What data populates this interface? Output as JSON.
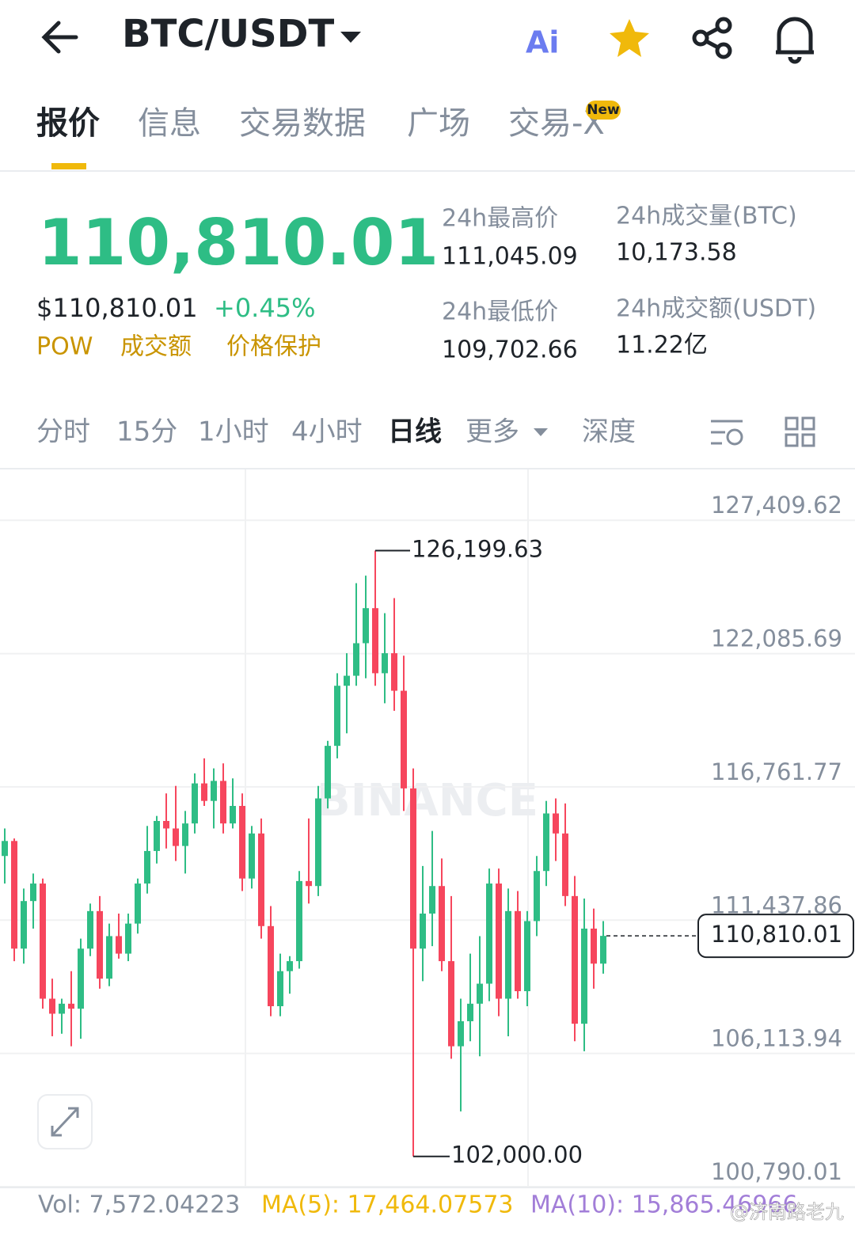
{
  "header": {
    "pair": "BTC/USDT",
    "ai": "Ai"
  },
  "tabs": [
    "报价",
    "信息",
    "交易数据",
    "广场",
    "交易-X"
  ],
  "tab_badge": "New",
  "price": {
    "last": "110,810.01",
    "usd": "$110,810.01",
    "change": "+0.45%",
    "tags": [
      "POW",
      "成交额",
      "价格保护"
    ]
  },
  "stats": [
    {
      "label": "24h最高价",
      "value": "111,045.09"
    },
    {
      "label": "24h成交量(BTC)",
      "value": "10,173.58"
    },
    {
      "label": "24h最低价",
      "value": "109,702.66"
    },
    {
      "label": "24h成交额(USDT)",
      "value": "11.22亿"
    }
  ],
  "intervals": [
    "分时",
    "15分",
    "1小时",
    "4小时",
    "日线",
    "更多",
    "深度"
  ],
  "chart_data": {
    "type": "candlestick",
    "watermark": "BINANCE",
    "up_color": "#2ebd85",
    "down_color": "#f6465d",
    "grid": true,
    "ylim": [
      100790.01,
      129440
    ],
    "yticks": [
      {
        "value": 100790.01,
        "label": "100,790.01"
      },
      {
        "value": 106113.94,
        "label": "106,113.94"
      },
      {
        "value": 111437.86,
        "label": "111,437.86"
      },
      {
        "value": 116761.77,
        "label": "116,761.77"
      },
      {
        "value": 122085.69,
        "label": "122,085.69"
      },
      {
        "value": 127409.62,
        "label": "127,409.62"
      }
    ],
    "ohlc": [
      [
        114000,
        115100,
        112900,
        114600
      ],
      [
        114600,
        114700,
        109800,
        110300
      ],
      [
        110300,
        112700,
        109700,
        112200
      ],
      [
        112200,
        113300,
        111100,
        112900
      ],
      [
        112900,
        113100,
        107900,
        108300
      ],
      [
        108300,
        109100,
        106800,
        107700
      ],
      [
        107700,
        108300,
        106900,
        108100
      ],
      [
        108100,
        109400,
        106400,
        107900
      ],
      [
        107900,
        110700,
        106700,
        110300
      ],
      [
        110300,
        112100,
        110000,
        111800
      ],
      [
        111800,
        112400,
        108700,
        109100
      ],
      [
        109100,
        111300,
        108800,
        110800
      ],
      [
        110800,
        111700,
        109900,
        110100
      ],
      [
        110100,
        111700,
        109800,
        111300
      ],
      [
        111300,
        113100,
        110900,
        112900
      ],
      [
        112900,
        115200,
        112500,
        114200
      ],
      [
        114200,
        115600,
        113700,
        115400
      ],
      [
        115400,
        116500,
        114300,
        115100
      ],
      [
        115100,
        116800,
        113800,
        114400
      ],
      [
        114400,
        115800,
        113300,
        115300
      ],
      [
        115300,
        117300,
        114900,
        116900
      ],
      [
        116900,
        117900,
        116000,
        116200
      ],
      [
        116200,
        117500,
        115100,
        117000
      ],
      [
        117000,
        117700,
        114900,
        115300
      ],
      [
        115300,
        117100,
        115100,
        116000
      ],
      [
        116000,
        116500,
        112600,
        113100
      ],
      [
        113100,
        115200,
        112700,
        114900
      ],
      [
        114900,
        115500,
        110700,
        111200
      ],
      [
        111200,
        112000,
        107600,
        108000
      ],
      [
        108000,
        110100,
        107600,
        109400
      ],
      [
        109400,
        110000,
        108500,
        109800
      ],
      [
        109800,
        113400,
        109500,
        113000
      ],
      [
        113000,
        115500,
        112100,
        112800
      ],
      [
        112800,
        116800,
        112400,
        116300
      ],
      [
        116300,
        118600,
        115900,
        118400
      ],
      [
        118400,
        121300,
        117900,
        120800
      ],
      [
        120800,
        122100,
        118900,
        121200
      ],
      [
        121200,
        124900,
        120800,
        122500
      ],
      [
        122500,
        125200,
        121100,
        123900
      ],
      [
        123900,
        126199.63,
        120800,
        121300
      ],
      [
        121300,
        123700,
        120100,
        122100
      ],
      [
        122100,
        124300,
        119800,
        120600
      ],
      [
        120600,
        122000,
        115800,
        116700
      ],
      [
        116700,
        117500,
        102000,
        110300
      ],
      [
        110300,
        113600,
        109000,
        111700
      ],
      [
        111700,
        115000,
        110400,
        112800
      ],
      [
        112800,
        113900,
        109400,
        109800
      ],
      [
        109800,
        112400,
        105900,
        106400
      ],
      [
        106400,
        108300,
        103800,
        107400
      ],
      [
        107400,
        110100,
        106600,
        108100
      ],
      [
        108100,
        110800,
        106000,
        108900
      ],
      [
        108900,
        113500,
        108200,
        112900
      ],
      [
        112900,
        113500,
        107600,
        108300
      ],
      [
        108300,
        112700,
        106800,
        111800
      ],
      [
        111800,
        112600,
        108300,
        108600
      ],
      [
        108600,
        111800,
        108000,
        111400
      ],
      [
        111400,
        114000,
        110800,
        113400
      ],
      [
        113400,
        116200,
        112800,
        115700
      ],
      [
        115700,
        116300,
        113800,
        114900
      ],
      [
        114900,
        116100,
        112000,
        112400
      ],
      [
        112400,
        113200,
        106600,
        107300
      ],
      [
        107300,
        112300,
        106200,
        111100
      ],
      [
        111100,
        111900,
        108700,
        109700
      ],
      [
        109700,
        111400,
        109300,
        110810.01
      ]
    ],
    "annotations": {
      "high": {
        "value": 126199.63,
        "label": "126,199.63"
      },
      "low": {
        "value": 102000,
        "label": "102,000.00"
      },
      "last": {
        "value": 110810.01,
        "label": "110,810.01"
      }
    }
  },
  "footer": {
    "vol": "Vol: 7,572.04223",
    "ma5": "MA(5): 17,464.07573",
    "ma10": "MA(10): 15,865.46966",
    "watermark": "@济南路老九"
  }
}
